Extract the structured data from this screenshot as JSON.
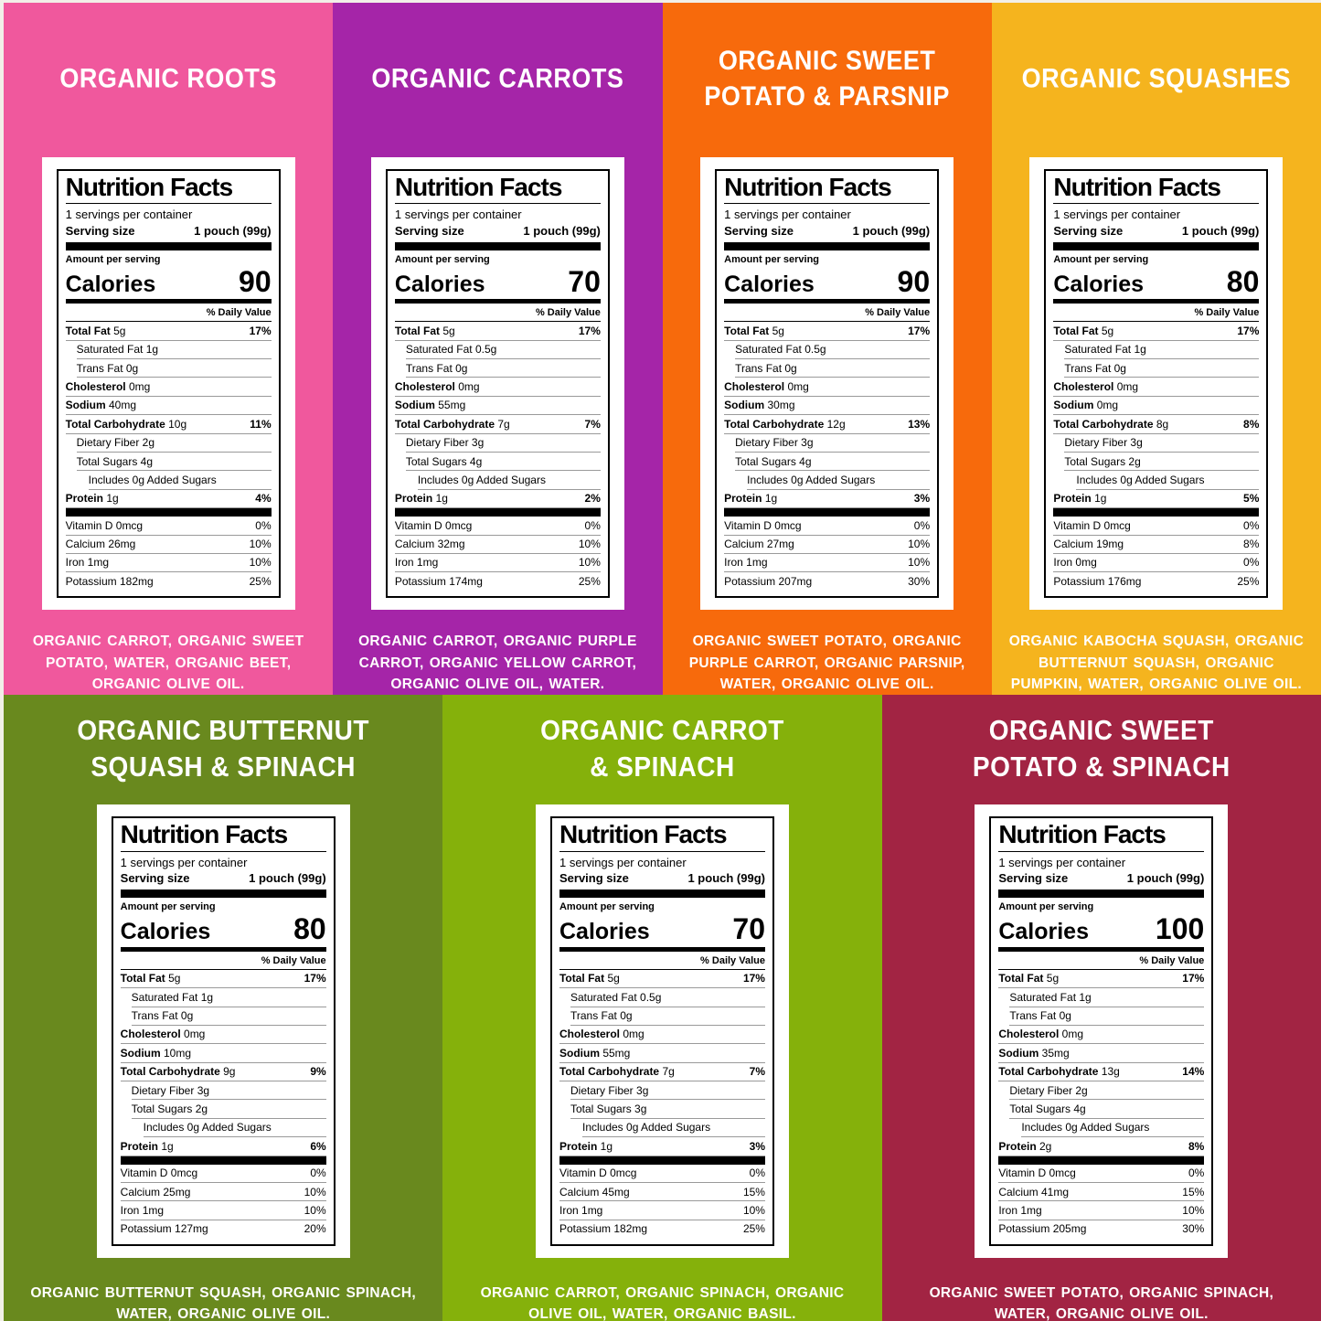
{
  "page": {
    "edge_color": "#f2efe8",
    "text_color_on_panels": "#ffffff"
  },
  "label_template": {
    "heading": "Nutrition Facts",
    "servings_per_container": "1 servings per container",
    "serving_size_label": "Serving size",
    "serving_size_value": "1 pouch (99g)",
    "amount_per_serving": "Amount per serving",
    "calories_label": "Calories",
    "daily_value_label": "% Daily Value"
  },
  "panels": [
    {
      "title_lines": [
        "ORGANIC ROOTS"
      ],
      "bg_color": "#f0589d",
      "calories": "90",
      "rows": [
        {
          "n": "Total Fat",
          "v": "5g",
          "p": "17%",
          "b": true,
          "i": 0
        },
        {
          "n": "Saturated Fat",
          "v": "1g",
          "p": "",
          "b": false,
          "i": 1
        },
        {
          "n": "Trans Fat",
          "v": "0g",
          "p": "",
          "b": false,
          "i": 1
        },
        {
          "n": "Cholesterol",
          "v": "0mg",
          "p": "",
          "b": true,
          "i": 0
        },
        {
          "n": "Sodium",
          "v": "40mg",
          "p": "",
          "b": true,
          "i": 0
        },
        {
          "n": "Total Carbohydrate",
          "v": "10g",
          "p": "11%",
          "b": true,
          "i": 0
        },
        {
          "n": "Dietary Fiber",
          "v": "2g",
          "p": "",
          "b": false,
          "i": 1
        },
        {
          "n": "Total Sugars",
          "v": "4g",
          "p": "",
          "b": false,
          "i": 1
        },
        {
          "n": "Includes 0g Added Sugars",
          "v": "",
          "p": "",
          "b": false,
          "i": 2
        },
        {
          "n": "Protein",
          "v": "1g",
          "p": "4%",
          "b": true,
          "i": 0
        }
      ],
      "vitamins": [
        {
          "n": "Vitamin D",
          "v": "0mcg",
          "p": "0%"
        },
        {
          "n": "Calcium",
          "v": "26mg",
          "p": "10%"
        },
        {
          "n": "Iron",
          "v": "1mg",
          "p": "10%"
        },
        {
          "n": "Potassium",
          "v": "182mg",
          "p": "25%"
        }
      ],
      "ingredients": "ORGANIC CARROT, ORGANIC SWEET POTATO, WATER, ORGANIC BEET, ORGANIC OLIVE OIL."
    },
    {
      "title_lines": [
        "ORGANIC CARROTS"
      ],
      "bg_color": "#a525a8",
      "calories": "70",
      "rows": [
        {
          "n": "Total Fat",
          "v": "5g",
          "p": "17%",
          "b": true,
          "i": 0
        },
        {
          "n": "Saturated Fat",
          "v": "0.5g",
          "p": "",
          "b": false,
          "i": 1
        },
        {
          "n": "Trans Fat",
          "v": "0g",
          "p": "",
          "b": false,
          "i": 1
        },
        {
          "n": "Cholesterol",
          "v": "0mg",
          "p": "",
          "b": true,
          "i": 0
        },
        {
          "n": "Sodium",
          "v": "55mg",
          "p": "",
          "b": true,
          "i": 0
        },
        {
          "n": "Total Carbohydrate",
          "v": "7g",
          "p": "7%",
          "b": true,
          "i": 0
        },
        {
          "n": "Dietary Fiber",
          "v": "3g",
          "p": "",
          "b": false,
          "i": 1
        },
        {
          "n": "Total Sugars",
          "v": "4g",
          "p": "",
          "b": false,
          "i": 1
        },
        {
          "n": "Includes 0g Added Sugars",
          "v": "",
          "p": "",
          "b": false,
          "i": 2
        },
        {
          "n": "Protein",
          "v": "1g",
          "p": "2%",
          "b": true,
          "i": 0
        }
      ],
      "vitamins": [
        {
          "n": "Vitamin D",
          "v": "0mcg",
          "p": "0%"
        },
        {
          "n": "Calcium",
          "v": "32mg",
          "p": "10%"
        },
        {
          "n": "Iron",
          "v": "1mg",
          "p": "10%"
        },
        {
          "n": "Potassium",
          "v": "174mg",
          "p": "25%"
        }
      ],
      "ingredients": "ORGANIC CARROT, ORGANIC PURPLE CARROT, ORGANIC YELLOW CARROT, ORGANIC OLIVE OIL, WATER."
    },
    {
      "title_lines": [
        "ORGANIC SWEET",
        "POTATO & PARSNIP"
      ],
      "bg_color": "#f76a0c",
      "calories": "90",
      "rows": [
        {
          "n": "Total Fat",
          "v": "5g",
          "p": "17%",
          "b": true,
          "i": 0
        },
        {
          "n": "Saturated Fat",
          "v": "0.5g",
          "p": "",
          "b": false,
          "i": 1
        },
        {
          "n": "Trans Fat",
          "v": "0g",
          "p": "",
          "b": false,
          "i": 1
        },
        {
          "n": "Cholesterol",
          "v": "0mg",
          "p": "",
          "b": true,
          "i": 0
        },
        {
          "n": "Sodium",
          "v": "30mg",
          "p": "",
          "b": true,
          "i": 0
        },
        {
          "n": "Total Carbohydrate",
          "v": "12g",
          "p": "13%",
          "b": true,
          "i": 0
        },
        {
          "n": "Dietary Fiber",
          "v": "3g",
          "p": "",
          "b": false,
          "i": 1
        },
        {
          "n": "Total Sugars",
          "v": "4g",
          "p": "",
          "b": false,
          "i": 1
        },
        {
          "n": "Includes 0g Added Sugars",
          "v": "",
          "p": "",
          "b": false,
          "i": 2
        },
        {
          "n": "Protein",
          "v": "1g",
          "p": "3%",
          "b": true,
          "i": 0
        }
      ],
      "vitamins": [
        {
          "n": "Vitamin D",
          "v": "0mcg",
          "p": "0%"
        },
        {
          "n": "Calcium",
          "v": "27mg",
          "p": "10%"
        },
        {
          "n": "Iron",
          "v": "1mg",
          "p": "10%"
        },
        {
          "n": "Potassium",
          "v": "207mg",
          "p": "30%"
        }
      ],
      "ingredients": "ORGANIC SWEET POTATO, ORGANIC PURPLE CARROT, ORGANIC PARSNIP, WATER, ORGANIC OLIVE OIL."
    },
    {
      "title_lines": [
        "ORGANIC SQUASHES"
      ],
      "bg_color": "#f5b41e",
      "calories": "80",
      "rows": [
        {
          "n": "Total Fat",
          "v": "5g",
          "p": "17%",
          "b": true,
          "i": 0
        },
        {
          "n": "Saturated Fat",
          "v": "1g",
          "p": "",
          "b": false,
          "i": 1
        },
        {
          "n": "Trans Fat",
          "v": "0g",
          "p": "",
          "b": false,
          "i": 1
        },
        {
          "n": "Cholesterol",
          "v": "0mg",
          "p": "",
          "b": true,
          "i": 0
        },
        {
          "n": "Sodium",
          "v": "0mg",
          "p": "",
          "b": true,
          "i": 0
        },
        {
          "n": "Total Carbohydrate",
          "v": "8g",
          "p": "8%",
          "b": true,
          "i": 0
        },
        {
          "n": "Dietary Fiber",
          "v": "3g",
          "p": "",
          "b": false,
          "i": 1
        },
        {
          "n": "Total Sugars",
          "v": "2g",
          "p": "",
          "b": false,
          "i": 1
        },
        {
          "n": "Includes 0g Added Sugars",
          "v": "",
          "p": "",
          "b": false,
          "i": 2
        },
        {
          "n": "Protein",
          "v": "1g",
          "p": "5%",
          "b": true,
          "i": 0
        }
      ],
      "vitamins": [
        {
          "n": "Vitamin D",
          "v": "0mcg",
          "p": "0%"
        },
        {
          "n": "Calcium",
          "v": "19mg",
          "p": "8%"
        },
        {
          "n": "Iron",
          "v": "0mg",
          "p": "0%"
        },
        {
          "n": "Potassium",
          "v": "176mg",
          "p": "25%"
        }
      ],
      "ingredients": "ORGANIC KABOCHA SQUASH, ORGANIC BUTTERNUT SQUASH, ORGANIC PUMPKIN, WATER, ORGANIC OLIVE OIL."
    },
    {
      "title_lines": [
        "ORGANIC BUTTERNUT",
        "SQUASH & SPINACH"
      ],
      "bg_color": "#69891e",
      "calories": "80",
      "rows": [
        {
          "n": "Total Fat",
          "v": "5g",
          "p": "17%",
          "b": true,
          "i": 0
        },
        {
          "n": "Saturated Fat",
          "v": "1g",
          "p": "",
          "b": false,
          "i": 1
        },
        {
          "n": "Trans Fat",
          "v": "0g",
          "p": "",
          "b": false,
          "i": 1
        },
        {
          "n": "Cholesterol",
          "v": "0mg",
          "p": "",
          "b": true,
          "i": 0
        },
        {
          "n": "Sodium",
          "v": "10mg",
          "p": "",
          "b": true,
          "i": 0
        },
        {
          "n": "Total Carbohydrate",
          "v": "9g",
          "p": "9%",
          "b": true,
          "i": 0
        },
        {
          "n": "Dietary Fiber",
          "v": "3g",
          "p": "",
          "b": false,
          "i": 1
        },
        {
          "n": "Total Sugars",
          "v": "2g",
          "p": "",
          "b": false,
          "i": 1
        },
        {
          "n": "Includes 0g Added Sugars",
          "v": "",
          "p": "",
          "b": false,
          "i": 2
        },
        {
          "n": "Protein",
          "v": "1g",
          "p": "6%",
          "b": true,
          "i": 0
        }
      ],
      "vitamins": [
        {
          "n": "Vitamin D",
          "v": "0mcg",
          "p": "0%"
        },
        {
          "n": "Calcium",
          "v": "25mg",
          "p": "10%"
        },
        {
          "n": "Iron",
          "v": "1mg",
          "p": "10%"
        },
        {
          "n": "Potassium",
          "v": "127mg",
          "p": "20%"
        }
      ],
      "ingredients": "ORGANIC BUTTERNUT SQUASH, ORGANIC SPINACH, WATER, ORGANIC OLIVE OIL."
    },
    {
      "title_lines": [
        "ORGANIC CARROT",
        "& SPINACH"
      ],
      "bg_color": "#85b10b",
      "calories": "70",
      "rows": [
        {
          "n": "Total Fat",
          "v": "5g",
          "p": "17%",
          "b": true,
          "i": 0
        },
        {
          "n": "Saturated Fat",
          "v": "0.5g",
          "p": "",
          "b": false,
          "i": 1
        },
        {
          "n": "Trans Fat",
          "v": "0g",
          "p": "",
          "b": false,
          "i": 1
        },
        {
          "n": "Cholesterol",
          "v": "0mg",
          "p": "",
          "b": true,
          "i": 0
        },
        {
          "n": "Sodium",
          "v": "55mg",
          "p": "",
          "b": true,
          "i": 0
        },
        {
          "n": "Total Carbohydrate",
          "v": "7g",
          "p": "7%",
          "b": true,
          "i": 0
        },
        {
          "n": "Dietary Fiber",
          "v": "3g",
          "p": "",
          "b": false,
          "i": 1
        },
        {
          "n": "Total Sugars",
          "v": "3g",
          "p": "",
          "b": false,
          "i": 1
        },
        {
          "n": "Includes 0g Added Sugars",
          "v": "",
          "p": "",
          "b": false,
          "i": 2
        },
        {
          "n": "Protein",
          "v": "1g",
          "p": "3%",
          "b": true,
          "i": 0
        }
      ],
      "vitamins": [
        {
          "n": "Vitamin D",
          "v": "0mcg",
          "p": "0%"
        },
        {
          "n": "Calcium",
          "v": "45mg",
          "p": "15%"
        },
        {
          "n": "Iron",
          "v": "1mg",
          "p": "10%"
        },
        {
          "n": "Potassium",
          "v": "182mg",
          "p": "25%"
        }
      ],
      "ingredients": "ORGANIC CARROT, ORGANIC SPINACH, ORGANIC OLIVE OIL, WATER, ORGANIC BASIL."
    },
    {
      "title_lines": [
        "ORGANIC SWEET",
        "POTATO & SPINACH"
      ],
      "bg_color": "#a22443",
      "calories": "100",
      "rows": [
        {
          "n": "Total Fat",
          "v": "5g",
          "p": "17%",
          "b": true,
          "i": 0
        },
        {
          "n": "Saturated Fat",
          "v": "1g",
          "p": "",
          "b": false,
          "i": 1
        },
        {
          "n": "Trans Fat",
          "v": "0g",
          "p": "",
          "b": false,
          "i": 1
        },
        {
          "n": "Cholesterol",
          "v": "0mg",
          "p": "",
          "b": true,
          "i": 0
        },
        {
          "n": "Sodium",
          "v": "35mg",
          "p": "",
          "b": true,
          "i": 0
        },
        {
          "n": "Total Carbohydrate",
          "v": "13g",
          "p": "14%",
          "b": true,
          "i": 0
        },
        {
          "n": "Dietary Fiber",
          "v": "2g",
          "p": "",
          "b": false,
          "i": 1
        },
        {
          "n": "Total Sugars",
          "v": "4g",
          "p": "",
          "b": false,
          "i": 1
        },
        {
          "n": "Includes 0g Added Sugars",
          "v": "",
          "p": "",
          "b": false,
          "i": 2
        },
        {
          "n": "Protein",
          "v": "2g",
          "p": "8%",
          "b": true,
          "i": 0
        }
      ],
      "vitamins": [
        {
          "n": "Vitamin D",
          "v": "0mcg",
          "p": "0%"
        },
        {
          "n": "Calcium",
          "v": "41mg",
          "p": "15%"
        },
        {
          "n": "Iron",
          "v": "1mg",
          "p": "10%"
        },
        {
          "n": "Potassium",
          "v": "205mg",
          "p": "30%"
        }
      ],
      "ingredients": "ORGANIC SWEET POTATO, ORGANIC SPINACH, WATER, ORGANIC OLIVE OIL."
    }
  ]
}
